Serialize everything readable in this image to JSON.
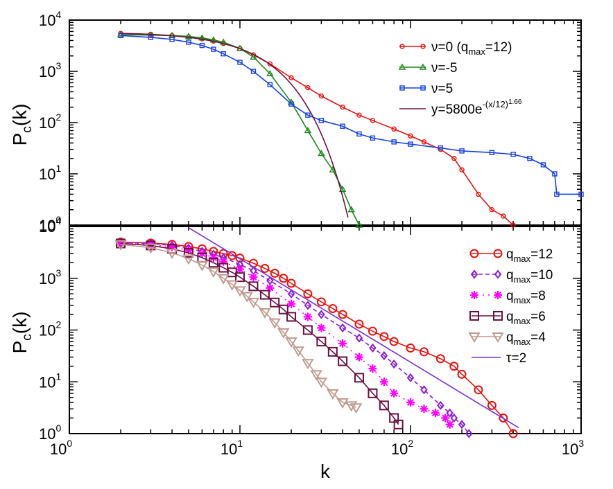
{
  "chart_data": [
    {
      "type": "line",
      "panel": "top",
      "xscale": "log",
      "yscale": "log",
      "xlim": [
        1,
        1000
      ],
      "ylim": [
        1,
        10000
      ],
      "ylabel": "P",
      "ylabel_sub": "c",
      "ylabel_tail": "(k)",
      "xlabel": "",
      "y_ticks": [
        {
          "base": "10",
          "exp": "0",
          "value": 1
        },
        {
          "base": "10",
          "exp": "1",
          "value": 10
        },
        {
          "base": "10",
          "exp": "2",
          "value": 100
        },
        {
          "base": "10",
          "exp": "3",
          "value": 1000
        },
        {
          "base": "10",
          "exp": "4",
          "value": 10000
        }
      ],
      "legend_position": "top-right",
      "series": [
        {
          "name": "ν=0 (qmax=12)",
          "label_main": "ν=0 (q",
          "label_sub": "max",
          "label_tail": "=12)",
          "color": "#e8120c",
          "marker": "circle",
          "x": [
            2,
            3,
            4,
            5,
            6,
            7,
            8,
            10,
            12,
            15,
            20,
            25,
            30,
            40,
            50,
            60,
            80,
            100,
            120,
            150,
            180,
            200,
            250,
            300,
            350,
            400
          ],
          "y": [
            5500,
            5300,
            5000,
            4700,
            4300,
            3900,
            3500,
            2800,
            2100,
            1400,
            750,
            480,
            330,
            200,
            140,
            110,
            75,
            55,
            42,
            30,
            20,
            12,
            4,
            2,
            1.5,
            1
          ]
        },
        {
          "name": "ν=-5",
          "label_main": "ν=-5",
          "color": "#1a8a1a",
          "marker": "triangle-up",
          "x": [
            2,
            3,
            4,
            5,
            6,
            7,
            8,
            10,
            12,
            15,
            20,
            25,
            30,
            35,
            40,
            45,
            50
          ],
          "y": [
            5200,
            5100,
            5000,
            4800,
            4500,
            4100,
            3700,
            2800,
            1900,
            900,
            250,
            70,
            25,
            12,
            5,
            2,
            1
          ]
        },
        {
          "name": "ν=5",
          "label_main": "ν=5",
          "color": "#1540e0",
          "marker": "square",
          "x": [
            2,
            3,
            4,
            5,
            6,
            7,
            8,
            10,
            12,
            15,
            20,
            25,
            30,
            40,
            50,
            60,
            80,
            100,
            150,
            200,
            300,
            400,
            500,
            600,
            700,
            720,
            1000
          ],
          "y": [
            5000,
            4600,
            4200,
            3700,
            3200,
            2700,
            2200,
            1500,
            1000,
            550,
            230,
            140,
            110,
            85,
            60,
            50,
            42,
            38,
            32,
            28,
            26,
            24,
            20,
            15,
            10,
            4,
            4
          ]
        },
        {
          "name": "y=5800e^-(x/12)^1.66",
          "label_main": "y=5800e",
          "label_sup": "-(x/12)",
          "label_sup2": "1.66",
          "color": "#6a1040",
          "marker": "none",
          "fit": {
            "A": 5800,
            "scale": 12,
            "beta": 1.66,
            "xmin": 2,
            "xmax": 43
          }
        }
      ]
    },
    {
      "type": "line",
      "panel": "bottom",
      "xscale": "log",
      "yscale": "log",
      "xlim": [
        1,
        1000
      ],
      "ylim": [
        1,
        10000
      ],
      "ylabel": "P",
      "ylabel_sub": "c",
      "ylabel_tail": "(k)",
      "xlabel": "k",
      "x_ticks": [
        {
          "base": "10",
          "exp": "0",
          "value": 1
        },
        {
          "base": "10",
          "exp": "1",
          "value": 10
        },
        {
          "base": "10",
          "exp": "2",
          "value": 100
        },
        {
          "base": "10",
          "exp": "3",
          "value": 1000
        }
      ],
      "y_ticks": [
        {
          "base": "10",
          "exp": "0",
          "value": 1
        },
        {
          "base": "10",
          "exp": "1",
          "value": 10
        },
        {
          "base": "10",
          "exp": "2",
          "value": 100
        },
        {
          "base": "10",
          "exp": "3",
          "value": 1000
        },
        {
          "base": "10",
          "exp": "4",
          "value": 10000
        }
      ],
      "legend_position": "top-right",
      "series": [
        {
          "name": "qmax=12",
          "label_main": "q",
          "label_sub": "max",
          "label_tail": "=12",
          "color": "#e8120c",
          "marker": "circle-open-large",
          "x": [
            2,
            3,
            4,
            5,
            6,
            7,
            8,
            9,
            10,
            12,
            14,
            16,
            18,
            20,
            25,
            30,
            35,
            40,
            50,
            60,
            70,
            80,
            100,
            120,
            150,
            180,
            200,
            250,
            300,
            350,
            400
          ],
          "y": [
            5000,
            4800,
            4500,
            4100,
            3700,
            3300,
            3000,
            2750,
            2450,
            1950,
            1550,
            1250,
            1000,
            800,
            500,
            350,
            260,
            200,
            130,
            95,
            75,
            60,
            45,
            38,
            28,
            20,
            14,
            7,
            3.5,
            2,
            1
          ]
        },
        {
          "name": "qmax=10",
          "label_main": "q",
          "label_sub": "max",
          "label_tail": "=10",
          "color": "#8a1ad8",
          "marker": "diamond",
          "x": [
            2,
            3,
            4,
            5,
            6,
            7,
            8,
            10,
            12,
            15,
            20,
            25,
            30,
            40,
            50,
            60,
            70,
            80,
            100,
            120,
            150,
            170,
            180,
            200,
            220
          ],
          "y": [
            4900,
            4700,
            4300,
            3800,
            3300,
            2900,
            2500,
            1850,
            1400,
            900,
            500,
            300,
            200,
            110,
            70,
            45,
            32,
            22,
            12,
            7,
            3.5,
            2.5,
            2,
            1.5,
            1
          ]
        },
        {
          "name": "qmax=8",
          "label_main": "q",
          "label_sub": "max",
          "label_tail": "=8",
          "color": "#ff00ff",
          "marker": "star",
          "x": [
            2,
            3,
            4,
            5,
            6,
            7,
            8,
            10,
            12,
            15,
            20,
            25,
            30,
            40,
            50,
            60,
            70,
            80,
            100,
            120,
            140,
            160,
            170
          ],
          "y": [
            4800,
            4500,
            4000,
            3500,
            3000,
            2500,
            2100,
            1500,
            1050,
            650,
            320,
            180,
            110,
            55,
            30,
            18,
            10,
            6,
            4,
            3,
            2.5,
            2,
            1.5
          ]
        },
        {
          "name": "qmax=6",
          "label_main": "q",
          "label_sub": "max",
          "label_tail": "=6",
          "color": "#6a1040",
          "marker": "square-open-large",
          "x": [
            2,
            3,
            4,
            5,
            6,
            7,
            8,
            9,
            10,
            12,
            14,
            16,
            18,
            20,
            25,
            30,
            35,
            40,
            50,
            60,
            70,
            80,
            85
          ],
          "y": [
            4700,
            4300,
            3700,
            3100,
            2500,
            2000,
            1600,
            1300,
            1050,
            700,
            480,
            340,
            250,
            180,
            100,
            60,
            38,
            25,
            12,
            6,
            3.5,
            2,
            1.5
          ]
        },
        {
          "name": "qmax=4",
          "label_main": "q",
          "label_sub": "max",
          "label_tail": "=4",
          "color": "#c09a90",
          "marker": "triangle-down-open-large",
          "x": [
            2,
            3,
            4,
            5,
            6,
            7,
            8,
            9,
            10,
            11,
            12,
            14,
            16,
            18,
            20,
            22,
            25,
            28,
            30,
            35,
            40,
            45,
            48
          ],
          "y": [
            4500,
            3900,
            3100,
            2400,
            1800,
            1350,
            1000,
            760,
            580,
            450,
            350,
            220,
            140,
            90,
            60,
            40,
            23,
            14,
            10,
            6,
            4,
            3.5,
            3.2
          ]
        },
        {
          "name": "τ=2",
          "label_main": "τ=2",
          "color": "#7a2ed8",
          "marker": "none",
          "line": {
            "x": [
              5,
              430
            ],
            "y": [
              9500,
              1.3
            ]
          }
        }
      ]
    }
  ]
}
